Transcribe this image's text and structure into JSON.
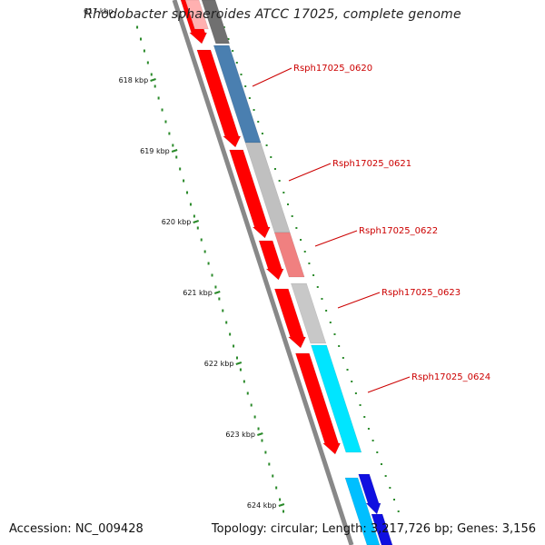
{
  "title": "Rhodobacter sphaeroides ATCC 17025, complete genome",
  "footer": {
    "accession": "Accession: NC_009428",
    "summary": "Topology: circular; Length: 3,217,726 bp; Genes: 3,156"
  },
  "colors": {
    "backbone": "#888888",
    "tick": "#2a8a2a",
    "label": "#cc0000",
    "leader": "#cc0000"
  },
  "ruler": {
    "partial_label": "617 kbp",
    "labels": [
      "618 kbp",
      "619 kbp",
      "620 kbp",
      "621 kbp",
      "622 kbp",
      "623 kbp",
      "624 kbp"
    ]
  },
  "annotations": [
    {
      "name": "Rsph17025_0620"
    },
    {
      "name": "Rsph17025_0621"
    },
    {
      "name": "Rsph17025_0622"
    },
    {
      "name": "Rsph17025_0623"
    },
    {
      "name": "Rsph17025_0624"
    }
  ],
  "tracks": {
    "outer_cds": {
      "color": "#ff0000"
    },
    "outer_palette": [
      "#ffb0b0",
      "#707070",
      "#4a7fb0",
      "#c0c0c0",
      "#f08080",
      "#c8c8c8",
      "#00e5ff",
      "#00bfff"
    ],
    "blue": "#1010e0"
  }
}
